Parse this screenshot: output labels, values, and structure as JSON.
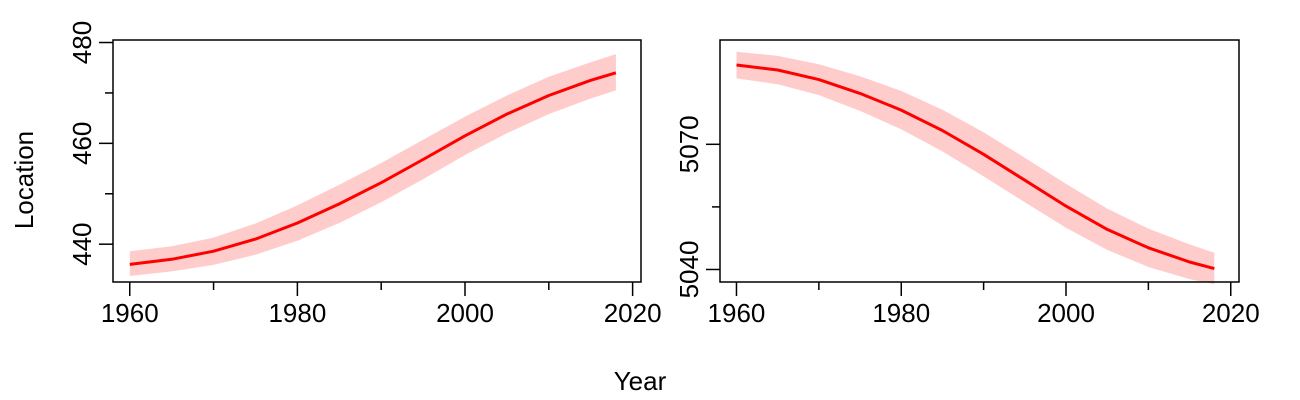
{
  "figure": {
    "xlabel": "Year",
    "ylabel": "Location"
  },
  "chart_data": [
    {
      "type": "line",
      "title": "",
      "xlabel": "Year",
      "ylabel": "Location",
      "xlim": [
        1958,
        2021
      ],
      "ylim": [
        432.5,
        480.5
      ],
      "xticks": [
        1960,
        1980,
        2000,
        2020
      ],
      "yticks": [
        440,
        460,
        480
      ],
      "grid": false,
      "legend": "none",
      "colors": {
        "line": "#ff0000",
        "band": "#ffcccc"
      },
      "series": [
        {
          "x": [
            1960,
            1965,
            1970,
            1975,
            1980,
            1985,
            1990,
            1995,
            2000,
            2005,
            2010,
            2015,
            2018
          ],
          "y": [
            436,
            437,
            438.6,
            441,
            444.2,
            448,
            452.2,
            456.8,
            461.5,
            465.8,
            469.5,
            472.5,
            474
          ],
          "lower": [
            433.7,
            434.6,
            435.9,
            437.9,
            440.7,
            444.2,
            448.3,
            452.9,
            457.7,
            462,
            465.8,
            468.9,
            470.5
          ],
          "upper": [
            438.6,
            439.6,
            441.3,
            444.1,
            447.7,
            451.8,
            456.1,
            460.7,
            465.3,
            469.5,
            473.2,
            476.1,
            477.7
          ]
        }
      ]
    },
    {
      "type": "line",
      "title": "",
      "xlabel": "Year",
      "ylabel": "",
      "xlim": [
        1958,
        2021
      ],
      "ylim": [
        5037,
        5095
      ],
      "xticks": [
        1960,
        1980,
        2000,
        2020
      ],
      "yticks": [
        5040,
        5070
      ],
      "grid": false,
      "legend": "none",
      "colors": {
        "line": "#ff0000",
        "band": "#ffcccc"
      },
      "series": [
        {
          "x": [
            1960,
            1965,
            1970,
            1975,
            1980,
            1985,
            1990,
            1995,
            2000,
            2005,
            2010,
            2015,
            2018
          ],
          "y": [
            5089,
            5087.8,
            5085.5,
            5082.2,
            5078.2,
            5073.3,
            5067.6,
            5061.4,
            5055.2,
            5049.6,
            5045.2,
            5041.8,
            5040.2
          ],
          "lower": [
            5085.8,
            5084.4,
            5081.8,
            5078,
            5073.6,
            5068.3,
            5062.3,
            5056.1,
            5050,
            5044.7,
            5040.6,
            5037.7,
            5036.5
          ],
          "upper": [
            5092.2,
            5091.2,
            5089.2,
            5086.3,
            5082.8,
            5078.3,
            5072.9,
            5066.8,
            5060.5,
            5054.6,
            5049.8,
            5046,
            5044
          ]
        }
      ]
    }
  ]
}
